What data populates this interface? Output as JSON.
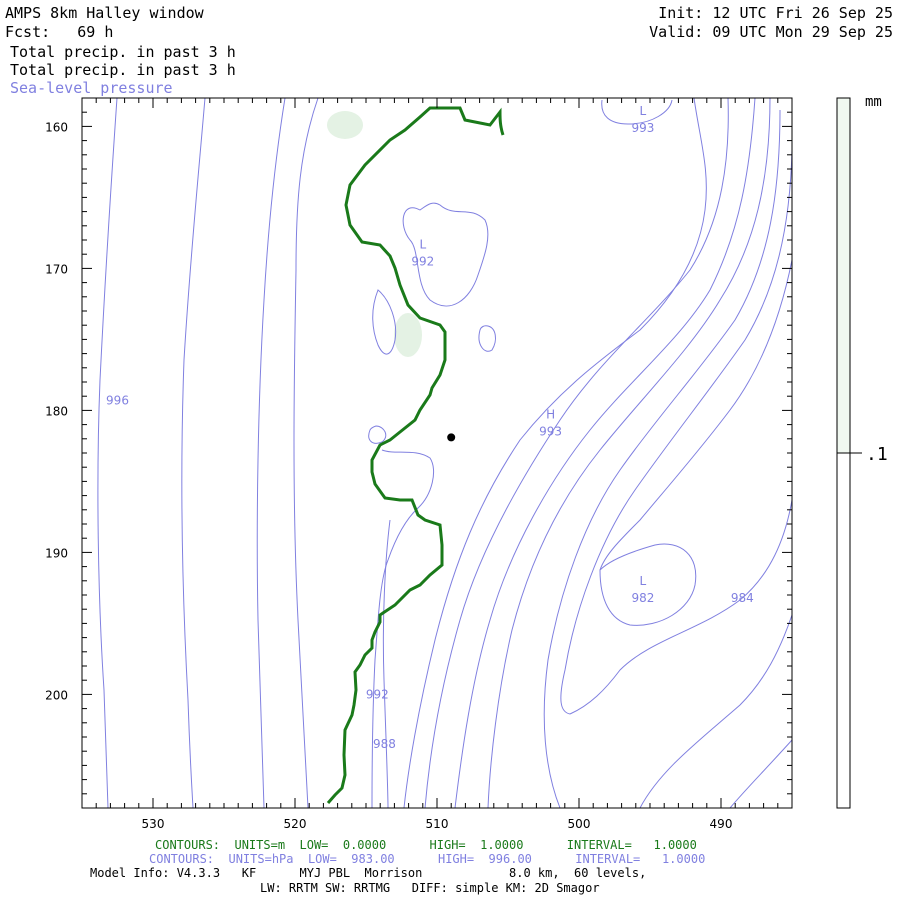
{
  "header": {
    "title": "AMPS 8km Halley window",
    "fcst": "Fcst:   69 h",
    "init": "Init: 12 UTC Fri 26 Sep 25",
    "valid": "Valid: 09 UTC Mon 29 Sep 25",
    "field1": "Total precip. in past 3 h",
    "field2": "Total precip. in past 3 h",
    "field3": "Sea-level pressure"
  },
  "colorbar": {
    "unit": "mm",
    "label": ".1"
  },
  "footer": {
    "contours_green": "CONTOURS:  UNITS=m  LOW=  0.0000      HIGH=  1.0000      INTERVAL=   1.0000",
    "contours_blue": "CONTOURS:  UNITS=hPa  LOW=  983.00      HIGH=  996.00      INTERVAL=   1.0000",
    "model_info": "Model Info: V4.3.3   KF      MYJ PBL  Morrison            8.0 km,  60 levels,",
    "model_info2": "LW: RRTM SW: RRTMG   DIFF: simple KM: 2D Smagor"
  },
  "colors": {
    "pressure": "#8080e0",
    "coast": "#1a7a1a",
    "precip": "#e4f2e4"
  },
  "chart_data": {
    "type": "contour",
    "x_ticks": [
      "530",
      "520",
      "510",
      "500",
      "490"
    ],
    "y_ticks": [
      "160",
      "170",
      "180",
      "190",
      "200"
    ],
    "xlim": [
      535,
      485
    ],
    "ylim": [
      158,
      208
    ],
    "pressure_labels": [
      {
        "text": "996",
        "x": 532.5,
        "y": 179.3
      },
      {
        "text": "L",
        "x": 495.5,
        "y": 158.9
      },
      {
        "text": "993",
        "x": 495.5,
        "y": 160.1
      },
      {
        "text": "L",
        "x": 511.0,
        "y": 168.3
      },
      {
        "text": "992",
        "x": 511.0,
        "y": 169.5
      },
      {
        "text": "H",
        "x": 502.0,
        "y": 180.3
      },
      {
        "text": "993",
        "x": 502.0,
        "y": 181.5
      },
      {
        "text": "L",
        "x": 495.5,
        "y": 192.0
      },
      {
        "text": "982",
        "x": 495.5,
        "y": 193.2
      },
      {
        "text": "984",
        "x": 488.5,
        "y": 193.2
      },
      {
        "text": "992",
        "x": 514.2,
        "y": 200.0
      },
      {
        "text": "988",
        "x": 513.7,
        "y": 203.5
      }
    ],
    "station": {
      "x": 509.0,
      "y": 181.9
    }
  }
}
